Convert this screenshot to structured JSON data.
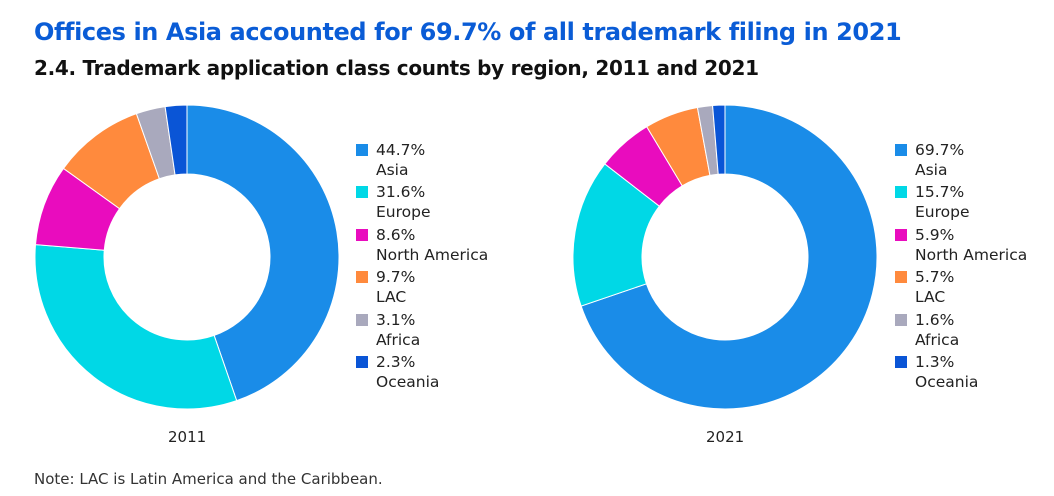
{
  "title": "Offices in Asia accounted for 69.7% of all trademark filing in 2021",
  "subtitle": "2.4. Trademark application class counts by region, 2011 and 2021",
  "note": "Note: LAC is Latin America and the Caribbean.",
  "chart_data": [
    {
      "type": "pie",
      "title": "2011",
      "categories": [
        "Asia",
        "Europe",
        "North America",
        "LAC",
        "Africa",
        "Oceania"
      ],
      "values": [
        44.7,
        31.6,
        8.6,
        9.7,
        3.1,
        2.3
      ],
      "labels": [
        "44.7%",
        "31.6%",
        "8.6%",
        "9.7%",
        "3.1%",
        "2.3%"
      ],
      "colors": [
        "#1a8ce8",
        "#00d8e6",
        "#e90cbe",
        "#ff8a3d",
        "#a9a9bd",
        "#0a55d6"
      ]
    },
    {
      "type": "pie",
      "title": "2021",
      "categories": [
        "Asia",
        "Europe",
        "North America",
        "LAC",
        "Africa",
        "Oceania"
      ],
      "values": [
        69.7,
        15.7,
        5.9,
        5.7,
        1.6,
        1.3
      ],
      "labels": [
        "69.7%",
        "15.7%",
        "5.9%",
        "5.7%",
        "1.6%",
        "1.3%"
      ],
      "colors": [
        "#1a8ce8",
        "#00d8e6",
        "#e90cbe",
        "#ff8a3d",
        "#a9a9bd",
        "#0a55d6"
      ]
    }
  ]
}
